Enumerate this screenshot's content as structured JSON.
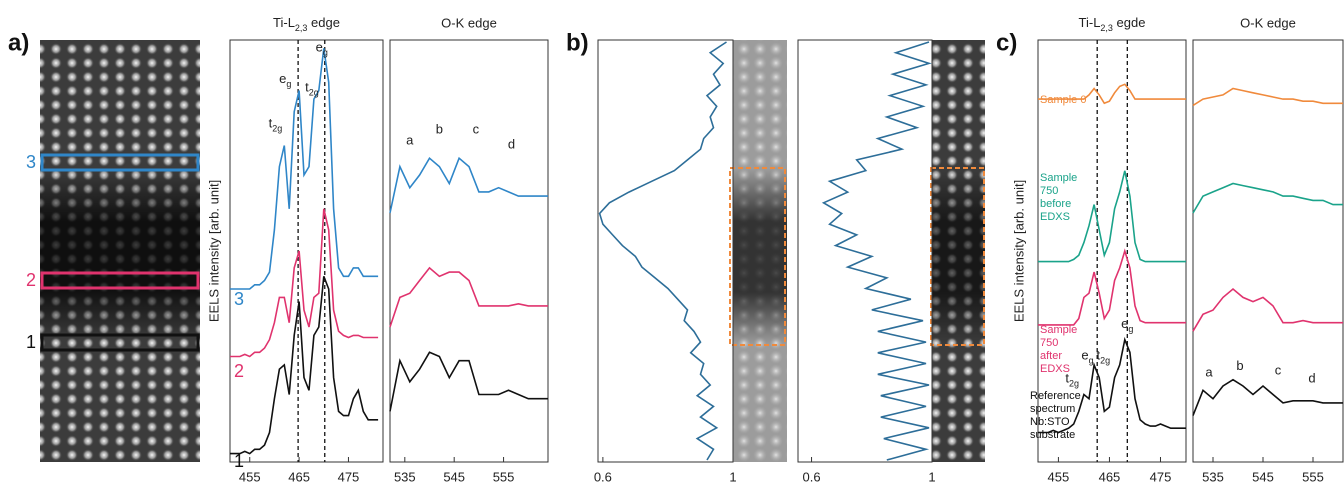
{
  "panels": [
    "a)",
    "b)",
    "c)"
  ],
  "chart_data": [
    {
      "type": "line",
      "title": {
        "text": "Ti-L",
        "sub": "2,3",
        "after": " edge"
      },
      "y_label": "EELS intensity [arb. unit]",
      "xlim": [
        451,
        482
      ],
      "xticks": [
        455,
        465,
        475
      ],
      "ylim": [
        0,
        10
      ],
      "vlines": [
        464.8,
        470.2
      ],
      "x": [
        451,
        452,
        453,
        454,
        455,
        456,
        457,
        458,
        459,
        460,
        461,
        462,
        463,
        464,
        465,
        466,
        467,
        468,
        469,
        470,
        471,
        472,
        473,
        474,
        475,
        476,
        477,
        478,
        479,
        480,
        481
      ],
      "series": [
        {
          "name": "3",
          "color": "#2f86c8",
          "values": [
            4.1,
            4.1,
            4.1,
            4.1,
            4.1,
            4.2,
            4.2,
            4.3,
            4.5,
            5.5,
            7.0,
            7.5,
            6.0,
            8.3,
            8.8,
            6.8,
            7.0,
            8.6,
            8.8,
            9.8,
            9.0,
            6.0,
            4.6,
            4.4,
            4.4,
            4.6,
            4.6,
            4.4,
            4.4,
            4.4,
            4.4
          ]
        },
        {
          "name": "2",
          "color": "#e0336e",
          "values": [
            2.5,
            2.5,
            2.5,
            2.55,
            2.5,
            2.6,
            2.6,
            2.7,
            2.9,
            3.3,
            3.9,
            3.9,
            3.3,
            4.6,
            5.0,
            3.6,
            3.2,
            3.9,
            4.0,
            6.0,
            5.5,
            3.6,
            3.1,
            3.0,
            2.95,
            3.0,
            3.0,
            2.95,
            2.95,
            2.95,
            2.95
          ]
        },
        {
          "name": "1",
          "color": "#111111",
          "values": [
            0.2,
            0.2,
            0.2,
            0.25,
            0.2,
            0.3,
            0.3,
            0.4,
            0.7,
            1.5,
            2.2,
            2.3,
            1.6,
            3.0,
            3.8,
            2.0,
            1.7,
            3.0,
            3.2,
            4.4,
            4.1,
            2.0,
            1.2,
            1.1,
            1.1,
            1.5,
            1.7,
            1.2,
            1.0,
            1.0,
            1.0
          ]
        }
      ],
      "annotations": [
        {
          "text": "t",
          "sub": "2g",
          "x": 460.2,
          "y": 8.0
        },
        {
          "text": "e",
          "sub": "g",
          "x": 462.2,
          "y": 9.05
        },
        {
          "text": "t",
          "sub": "2g",
          "x": 467.6,
          "y": 8.85
        },
        {
          "text": "e",
          "sub": "g",
          "x": 469.6,
          "y": 9.8
        }
      ]
    },
    {
      "type": "line",
      "title": "O-K edge",
      "xlim": [
        532,
        564
      ],
      "xticks": [
        535,
        545,
        555
      ],
      "ylim": [
        0,
        10
      ],
      "x": [
        532,
        534,
        536,
        538,
        540,
        542,
        544,
        546,
        548,
        550,
        552,
        554,
        556,
        558,
        560,
        562,
        564
      ],
      "series": [
        {
          "name": "3",
          "color": "#2f86c8",
          "values": [
            5.9,
            7.0,
            6.5,
            6.8,
            7.2,
            7.0,
            6.6,
            7.2,
            7.0,
            6.4,
            6.4,
            6.5,
            6.4,
            6.3,
            6.3,
            6.3,
            6.3
          ]
        },
        {
          "name": "2",
          "color": "#e0336e",
          "values": [
            3.2,
            3.9,
            4.0,
            4.3,
            4.6,
            4.4,
            4.5,
            4.5,
            4.3,
            3.7,
            3.7,
            3.7,
            3.7,
            3.75,
            3.7,
            3.7,
            3.7
          ]
        },
        {
          "name": "1",
          "color": "#111111",
          "values": [
            1.2,
            2.4,
            1.9,
            2.2,
            2.6,
            2.5,
            2.0,
            2.4,
            2.4,
            1.6,
            1.6,
            1.6,
            1.7,
            1.6,
            1.5,
            1.5,
            1.5
          ]
        }
      ],
      "annotations": [
        {
          "text": "a",
          "x": 536,
          "y": 7.6
        },
        {
          "text": "b",
          "x": 542,
          "y": 7.85
        },
        {
          "text": "c",
          "x": 549.4,
          "y": 7.85
        },
        {
          "text": "d",
          "x": 556.6,
          "y": 7.5
        }
      ]
    },
    {
      "type": "profile",
      "xlim": [
        0.585,
        1.0
      ],
      "xticks": [
        0.6,
        1
      ],
      "color": "#2d6e99",
      "values": [
        0.98,
        0.93,
        0.97,
        0.94,
        0.96,
        0.92,
        0.95,
        0.93,
        0.94,
        0.91,
        0.9,
        0.86,
        0.82,
        0.75,
        0.68,
        0.62,
        0.59,
        0.6,
        0.63,
        0.66,
        0.7,
        0.72,
        0.76,
        0.8,
        0.83,
        0.86,
        0.85,
        0.88,
        0.9,
        0.87,
        0.91,
        0.9,
        0.93,
        0.89,
        0.94,
        0.9,
        0.95,
        0.89,
        0.94,
        0.92
      ]
    },
    {
      "type": "profile",
      "xlim": [
        0.555,
        1.0
      ],
      "xticks": [
        0.6,
        1
      ],
      "color": "#2d6e99",
      "values": [
        0.99,
        0.88,
        0.99,
        0.87,
        0.98,
        0.86,
        0.97,
        0.85,
        0.95,
        0.82,
        0.9,
        0.75,
        0.78,
        0.66,
        0.72,
        0.64,
        0.7,
        0.66,
        0.75,
        0.68,
        0.8,
        0.72,
        0.85,
        0.78,
        0.93,
        0.8,
        0.97,
        0.82,
        0.98,
        0.82,
        0.98,
        0.82,
        0.99,
        0.83,
        0.98,
        0.83,
        0.99,
        0.84,
        0.98,
        0.85
      ]
    },
    {
      "type": "line",
      "title": {
        "text": "Ti-L",
        "sub": "2,3",
        "after": " egde"
      },
      "y_label": "EELS intensity [arb. unit]",
      "xlim": [
        451,
        480
      ],
      "xticks": [
        455,
        465,
        475
      ],
      "ylim": [
        0,
        10
      ],
      "vlines": [
        462.6,
        468.5
      ],
      "x": [
        451,
        452,
        453,
        454,
        455,
        456,
        457,
        458,
        459,
        460,
        461,
        462,
        463,
        464,
        465,
        466,
        467,
        468,
        469,
        470,
        471,
        472,
        473,
        474,
        475,
        476,
        477,
        478,
        479,
        480
      ],
      "series": [
        {
          "name": [
            "Sample 0"
          ],
          "color": "#f08a3c",
          "values": [
            8.6,
            8.6,
            8.6,
            8.6,
            8.6,
            8.6,
            8.6,
            8.6,
            8.6,
            8.6,
            8.7,
            8.85,
            8.7,
            8.5,
            8.55,
            8.75,
            8.9,
            8.95,
            8.8,
            8.6,
            8.6,
            8.6,
            8.6,
            8.6,
            8.6,
            8.6,
            8.6,
            8.6,
            8.6,
            8.6
          ]
        },
        {
          "name": [
            "Sample",
            "750",
            "before",
            "EDXS"
          ],
          "color": "#1aa38a",
          "values": [
            4.75,
            4.75,
            4.75,
            4.75,
            4.75,
            4.75,
            4.75,
            4.8,
            4.9,
            5.2,
            5.6,
            6.1,
            5.5,
            4.9,
            5.2,
            6.0,
            6.4,
            6.9,
            6.3,
            5.2,
            4.8,
            4.75,
            4.75,
            4.75,
            4.75,
            4.75,
            4.75,
            4.75,
            4.75,
            4.75
          ]
        },
        {
          "name": [
            "Sample",
            "750",
            "after",
            "EDXS"
          ],
          "color": "#e0336e",
          "values": [
            3.25,
            3.25,
            3.25,
            3.25,
            3.25,
            3.25,
            3.25,
            3.25,
            3.4,
            3.9,
            4.0,
            4.5,
            4.0,
            3.4,
            3.6,
            4.3,
            4.6,
            5.0,
            4.6,
            3.7,
            3.35,
            3.3,
            3.3,
            3.3,
            3.3,
            3.3,
            3.3,
            3.3,
            3.3,
            3.3
          ]
        },
        {
          "name": [
            "Reference",
            "spectrum",
            "Nb:STO",
            "substrate"
          ],
          "color": "#111111",
          "values": [
            0.7,
            0.7,
            0.7,
            0.75,
            0.7,
            0.75,
            0.8,
            0.9,
            1.2,
            1.6,
            1.5,
            2.3,
            2.0,
            1.2,
            1.3,
            2.0,
            2.3,
            2.9,
            2.6,
            1.5,
            1.0,
            0.9,
            0.85,
            0.85,
            0.9,
            0.85,
            0.8,
            0.8,
            0.8,
            0.8
          ]
        }
      ],
      "annotations": [
        {
          "text": "e",
          "sub": "g",
          "x": 468.5,
          "y": 3.25
        },
        {
          "text": "e",
          "sub": "g",
          "x": 460.7,
          "y": 2.5
        },
        {
          "text": "t",
          "sub": "2g",
          "x": 463.8,
          "y": 2.5
        },
        {
          "text": "t",
          "sub": "2g",
          "x": 457.7,
          "y": 1.95
        }
      ]
    },
    {
      "type": "line",
      "title": "O-K edge",
      "xlim": [
        531,
        561
      ],
      "xticks": [
        535,
        545,
        555
      ],
      "ylim": [
        0,
        10
      ],
      "x": [
        531,
        533,
        535,
        537,
        539,
        541,
        543,
        545,
        547,
        549,
        551,
        553,
        555,
        557,
        559,
        561
      ],
      "series": [
        {
          "name": [
            "Sample 0"
          ],
          "color": "#f08a3c",
          "values": [
            8.45,
            8.6,
            8.65,
            8.7,
            8.85,
            8.8,
            8.75,
            8.7,
            8.65,
            8.6,
            8.6,
            8.55,
            8.55,
            8.5,
            8.5,
            8.5
          ]
        },
        {
          "name": [
            "Sample",
            "750",
            "before",
            "EDXS"
          ],
          "color": "#1aa38a",
          "values": [
            5.9,
            6.3,
            6.4,
            6.5,
            6.6,
            6.55,
            6.5,
            6.45,
            6.4,
            6.3,
            6.3,
            6.25,
            6.2,
            6.2,
            6.1,
            6.1
          ]
        },
        {
          "name": [
            "Sample",
            "750",
            "after",
            "EDXS"
          ],
          "color": "#e0336e",
          "values": [
            3.1,
            3.5,
            3.6,
            3.9,
            4.1,
            3.9,
            3.8,
            3.9,
            3.7,
            3.3,
            3.3,
            3.35,
            3.3,
            3.3,
            3.3,
            3.3
          ]
        },
        {
          "name": [
            "Reference",
            "spectrum",
            "Nb:STO",
            "substrate"
          ],
          "color": "#111111",
          "values": [
            1.1,
            1.7,
            1.5,
            1.8,
            1.95,
            1.8,
            1.6,
            1.8,
            1.6,
            1.4,
            1.45,
            1.45,
            1.45,
            1.4,
            1.4,
            1.4
          ]
        }
      ],
      "annotations": [
        {
          "text": "a",
          "x": 534.2,
          "y": 2.1
        },
        {
          "text": "b",
          "x": 540.4,
          "y": 2.25
        },
        {
          "text": "c",
          "x": 548,
          "y": 2.15
        },
        {
          "text": "d",
          "x": 554.8,
          "y": 1.95
        }
      ]
    }
  ]
}
